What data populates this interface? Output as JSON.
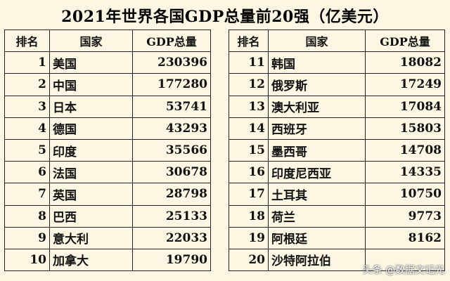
{
  "title": "2021年世界各国GDP总量前20强（亿美元）",
  "headers": {
    "rank": "排名",
    "country": "国家",
    "gdp": "GDP总量"
  },
  "left_rows": [
    {
      "rank": "1",
      "country": "美国",
      "gdp": "230396"
    },
    {
      "rank": "2",
      "country": "中国",
      "gdp": "177280"
    },
    {
      "rank": "3",
      "country": "日本",
      "gdp": "53741"
    },
    {
      "rank": "4",
      "country": "德国",
      "gdp": "43293"
    },
    {
      "rank": "5",
      "country": "印度",
      "gdp": "35566"
    },
    {
      "rank": "6",
      "country": "法国",
      "gdp": "30678"
    },
    {
      "rank": "7",
      "country": "英国",
      "gdp": "28798"
    },
    {
      "rank": "8",
      "country": "巴西",
      "gdp": "25133"
    },
    {
      "rank": "9",
      "country": "意大利",
      "gdp": "22033"
    },
    {
      "rank": "10",
      "country": "加拿大",
      "gdp": "19790"
    }
  ],
  "right_rows": [
    {
      "rank": "11",
      "country": "韩国",
      "gdp": "18082"
    },
    {
      "rank": "12",
      "country": "俄罗斯",
      "gdp": "17249"
    },
    {
      "rank": "13",
      "country": "澳大利亚",
      "gdp": "17084"
    },
    {
      "rank": "14",
      "country": "西班牙",
      "gdp": "15803"
    },
    {
      "rank": "15",
      "country": "墨西哥",
      "gdp": "14708"
    },
    {
      "rank": "16",
      "country": "印度尼西亚",
      "gdp": "14335"
    },
    {
      "rank": "17",
      "country": "土耳其",
      "gdp": "10750"
    },
    {
      "rank": "18",
      "country": "荷兰",
      "gdp": "9773"
    },
    {
      "rank": "19",
      "country": "阿根廷",
      "gdp": "8162"
    },
    {
      "rank": "20",
      "country": "沙特阿拉伯",
      "gdp": ""
    }
  ],
  "watermark": "头条 @数据文记光"
}
